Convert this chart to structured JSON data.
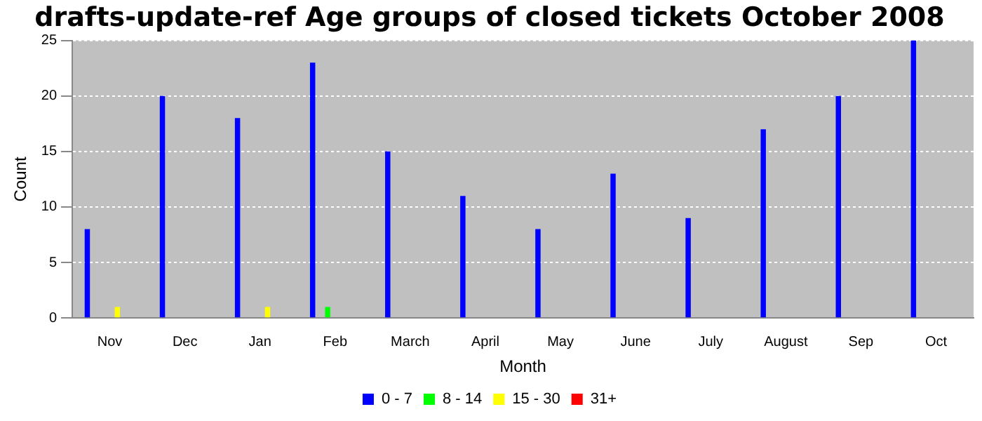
{
  "chart_data": {
    "type": "bar",
    "title": "drafts-update-ref Age groups of closed tickets October 2008",
    "xlabel": "Month",
    "ylabel": "Count",
    "categories": [
      "Nov",
      "Dec",
      "Jan",
      "Feb",
      "March",
      "April",
      "May",
      "June",
      "July",
      "August",
      "Sep",
      "Oct"
    ],
    "series": [
      {
        "name": "0 - 7",
        "color": "#0000ff",
        "values": [
          8,
          20,
          18,
          23,
          15,
          11,
          8,
          13,
          9,
          17,
          20,
          25
        ]
      },
      {
        "name": "8 - 14",
        "color": "#00ff00",
        "values": [
          0,
          0,
          0,
          1,
          0,
          0,
          0,
          0,
          0,
          0,
          0,
          0
        ]
      },
      {
        "name": "15 - 30",
        "color": "#ffff00",
        "values": [
          1,
          0,
          1,
          0,
          0,
          0,
          0,
          0,
          0,
          0,
          0,
          0
        ]
      },
      {
        "name": "31+",
        "color": "#ff0000",
        "values": [
          0,
          0,
          0,
          0,
          0,
          0,
          0,
          0,
          0,
          0,
          0,
          0
        ]
      }
    ],
    "ylim": [
      0,
      25
    ],
    "yticks": [
      0,
      5,
      10,
      15,
      20,
      25
    ],
    "grid": "y",
    "legend": "bottom"
  }
}
